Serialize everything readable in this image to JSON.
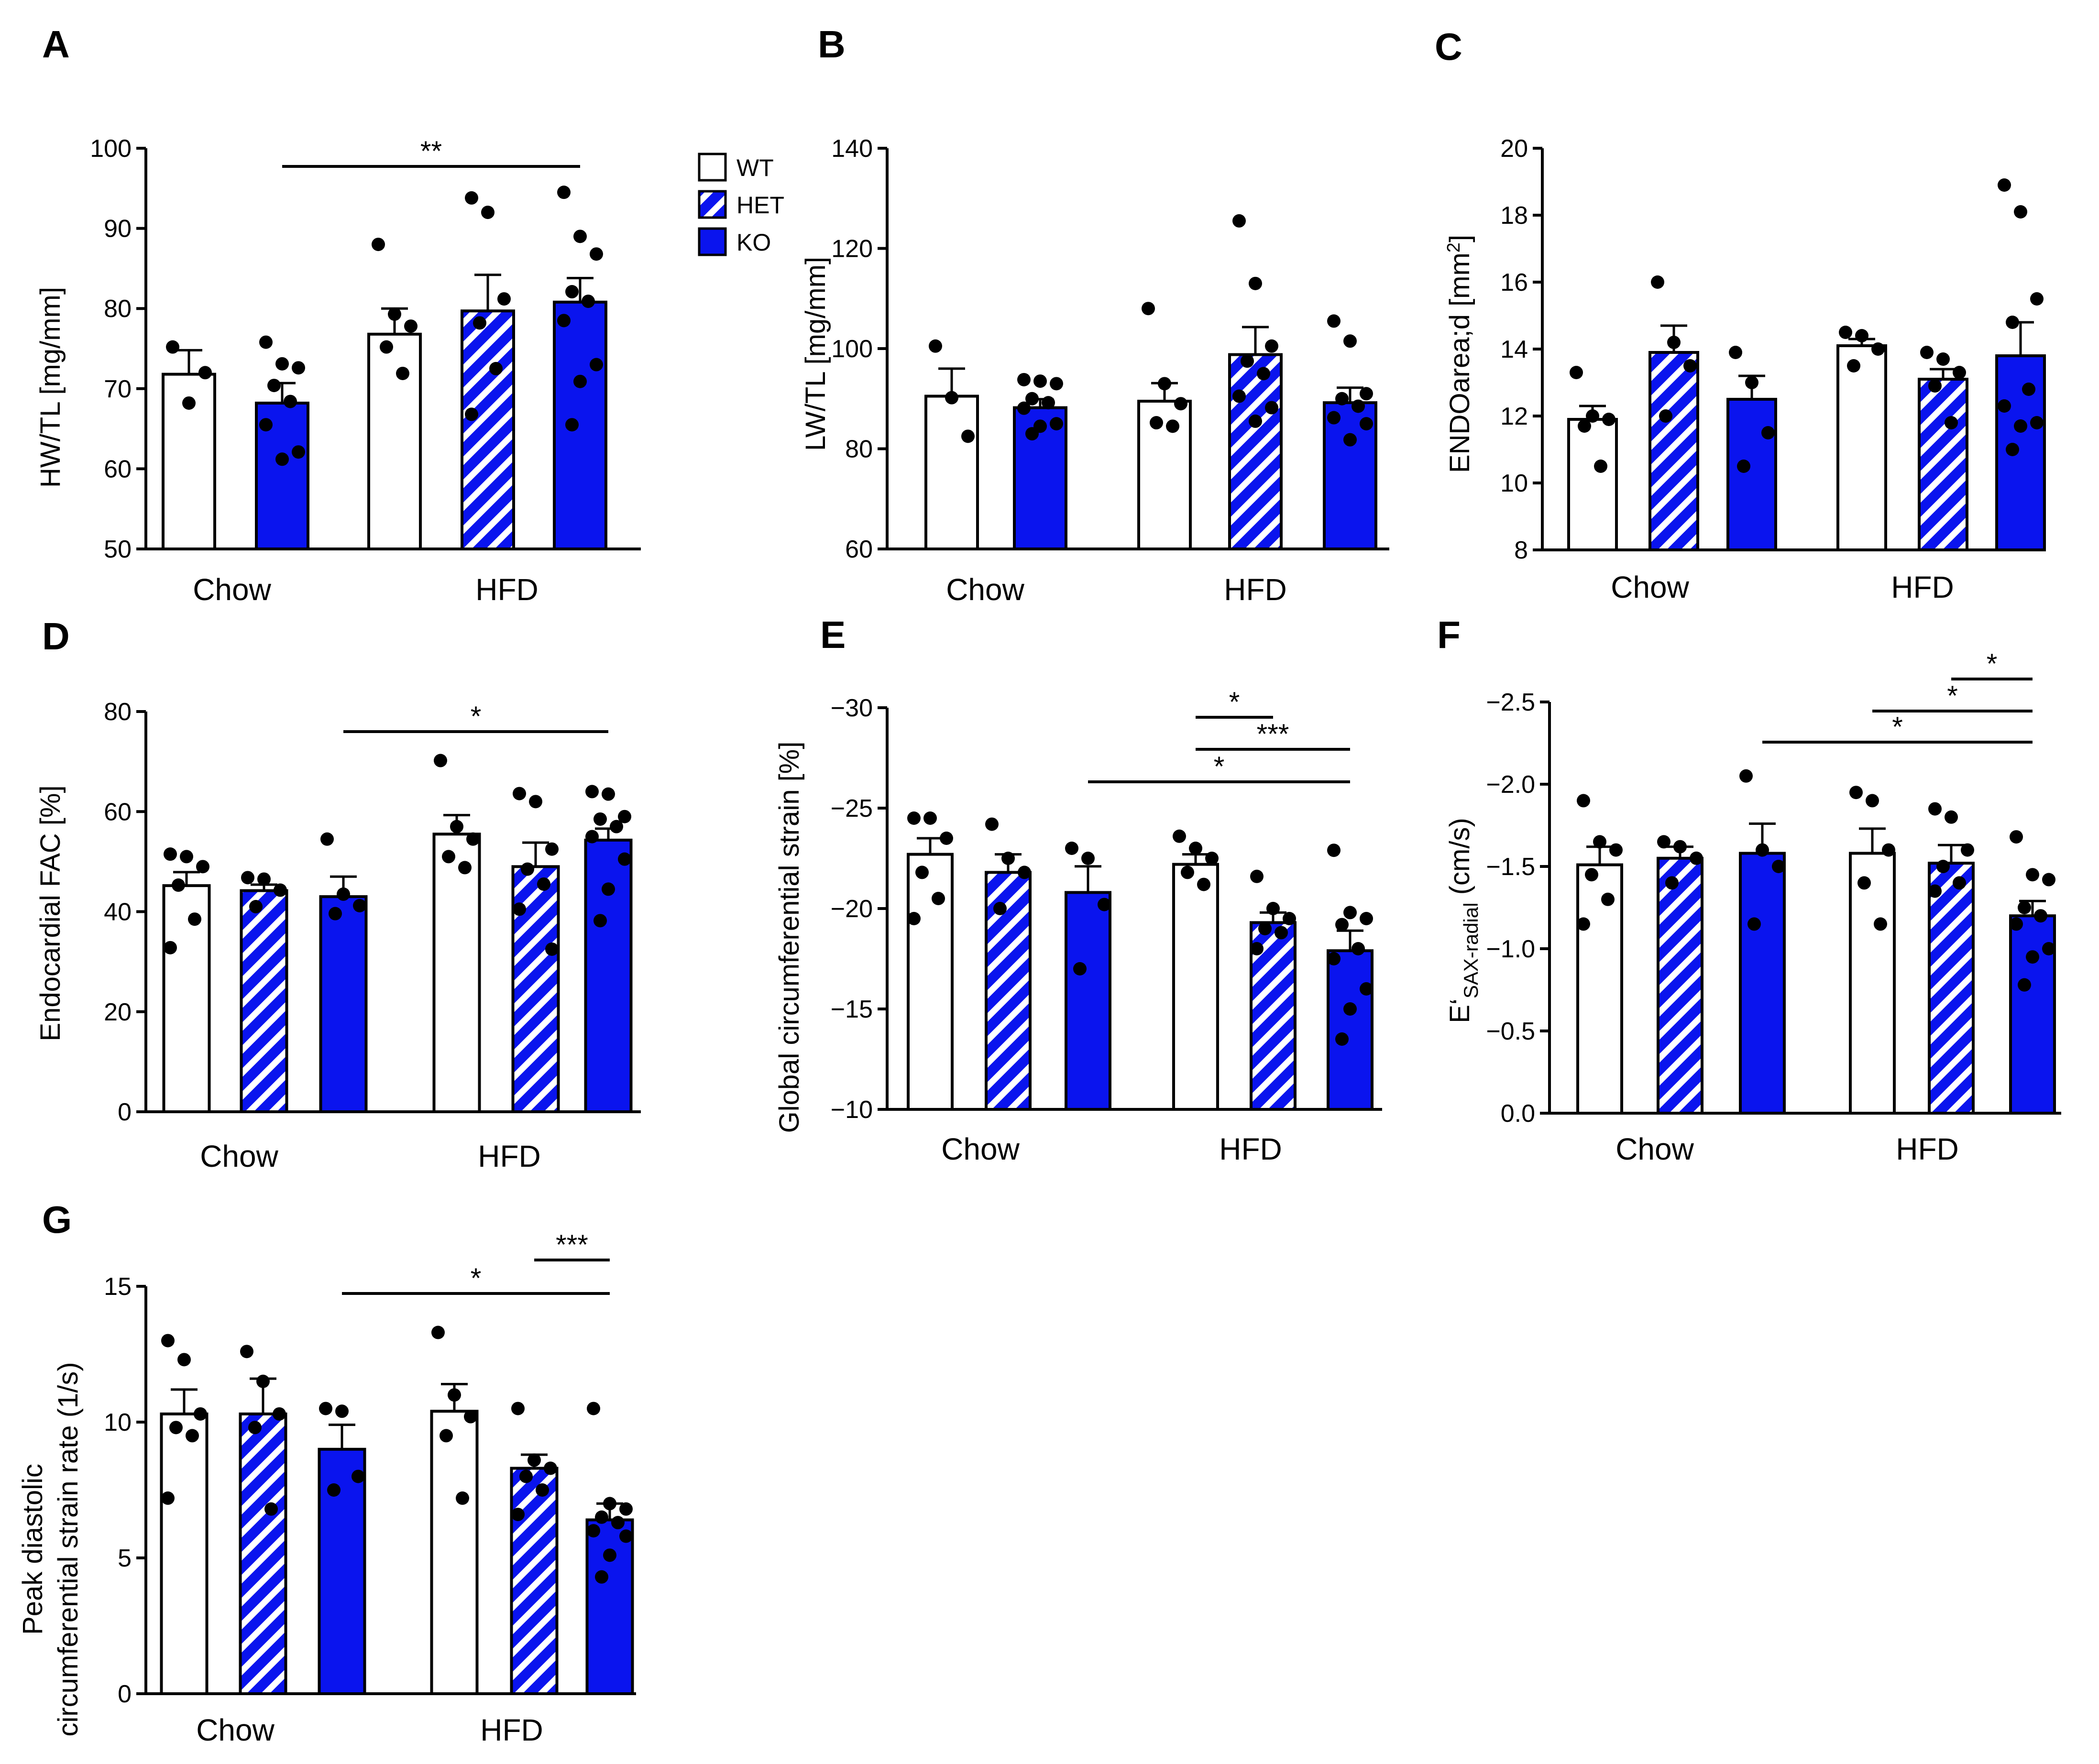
{
  "legend": {
    "items": [
      {
        "label": "WT",
        "pattern": "white"
      },
      {
        "label": "HET",
        "pattern": "hatch"
      },
      {
        "label": "KO",
        "pattern": "blue"
      }
    ]
  },
  "colors": {
    "blue": "#0a14ee",
    "black": "#000000",
    "white": "#ffffff"
  },
  "chart_data": [
    {
      "panel": "A",
      "type": "bar",
      "ylabel": "HW/TL [mg/mm]",
      "ylim": [
        50,
        100
      ],
      "yticks": [
        "50",
        "60",
        "70",
        "80",
        "90",
        "100"
      ],
      "groups": [
        "Chow",
        "HFD"
      ],
      "bars": [
        {
          "group": "Chow",
          "genotype": "WT",
          "mean": 71.8,
          "sem": 3.0,
          "points": [
            75.2,
            68.2,
            72.0
          ]
        },
        {
          "group": "Chow",
          "genotype": "KO",
          "mean": 68.2,
          "sem": 2.5,
          "points": [
            75.8,
            73.1,
            72.6,
            70.4,
            68.4,
            65.5,
            62.1,
            61.2
          ]
        },
        {
          "group": "HFD",
          "genotype": "WT",
          "mean": 76.8,
          "sem": 3.2,
          "points": [
            88.0,
            79.3,
            77.8,
            75.2,
            71.9
          ]
        },
        {
          "group": "HFD",
          "genotype": "HET",
          "mean": 79.7,
          "sem": 4.5,
          "points": [
            93.8,
            92.0,
            81.2,
            78.2,
            72.5,
            66.8
          ]
        },
        {
          "group": "HFD",
          "genotype": "KO",
          "mean": 80.8,
          "sem": 3.0,
          "points": [
            94.5,
            89.0,
            86.8,
            82.1,
            80.9,
            78.5,
            73.0,
            70.9,
            65.5
          ]
        }
      ],
      "significance": [
        {
          "label": "**",
          "from": 1,
          "to": 4
        }
      ]
    },
    {
      "panel": "B",
      "type": "bar",
      "ylabel": "LW/TL [mg/mm]",
      "ylim": [
        60,
        140
      ],
      "yticks": [
        "60",
        "80",
        "100",
        "120",
        "140"
      ],
      "groups": [
        "Chow",
        "HFD"
      ],
      "bars": [
        {
          "group": "Chow",
          "genotype": "WT",
          "mean": 90.5,
          "sem": 5.5,
          "points": [
            100.5,
            90.2,
            82.5
          ]
        },
        {
          "group": "Chow",
          "genotype": "KO",
          "mean": 88.2,
          "sem": 1.7,
          "points": [
            93.8,
            93.5,
            93.0,
            90.0,
            89.2,
            88.1,
            85.0,
            84.5,
            83.0
          ]
        },
        {
          "group": "HFD",
          "genotype": "WT",
          "mean": 89.5,
          "sem": 3.6,
          "points": [
            108.0,
            93.0,
            89.0,
            85.2,
            84.5
          ]
        },
        {
          "group": "HFD",
          "genotype": "HET",
          "mean": 98.8,
          "sem": 5.5,
          "points": [
            125.5,
            113.0,
            100.5,
            97.5,
            95.0,
            90.5,
            88.2,
            85.5
          ]
        },
        {
          "group": "HFD",
          "genotype": "KO",
          "mean": 89.2,
          "sem": 3.0,
          "points": [
            105.5,
            101.5,
            91.0,
            90.0,
            88.5,
            86.2,
            85.0,
            81.8
          ]
        }
      ],
      "significance": []
    },
    {
      "panel": "C",
      "type": "bar",
      "ylabel": "ENDOarea;d [mm2]",
      "ylim": [
        8,
        20
      ],
      "yticks": [
        "8",
        "10",
        "12",
        "14",
        "16",
        "18",
        "20"
      ],
      "groups": [
        "Chow",
        "HFD"
      ],
      "bars": [
        {
          "group": "Chow",
          "genotype": "WT",
          "mean": 11.9,
          "sem": 0.4,
          "points": [
            13.3,
            12.0,
            11.9,
            11.7,
            10.5
          ]
        },
        {
          "group": "Chow",
          "genotype": "HET",
          "mean": 13.9,
          "sem": 0.8,
          "points": [
            16.0,
            14.2,
            13.5,
            12.0
          ]
        },
        {
          "group": "Chow",
          "genotype": "KO",
          "mean": 12.5,
          "sem": 0.7,
          "points": [
            13.9,
            13.0,
            11.5,
            10.5
          ]
        },
        {
          "group": "HFD",
          "genotype": "WT",
          "mean": 14.1,
          "sem": 0.2,
          "points": [
            14.5,
            14.4,
            14.0,
            13.5
          ]
        },
        {
          "group": "HFD",
          "genotype": "HET",
          "mean": 13.1,
          "sem": 0.3,
          "points": [
            13.9,
            13.7,
            13.3,
            12.9,
            11.8
          ]
        },
        {
          "group": "HFD",
          "genotype": "KO",
          "mean": 13.8,
          "sem": 1.0,
          "points": [
            18.9,
            18.1,
            15.5,
            14.8,
            12.8,
            12.3,
            11.8,
            11.7,
            11.0
          ]
        }
      ],
      "significance": []
    },
    {
      "panel": "D",
      "type": "bar",
      "ylabel": "Endocardial FAC [%]",
      "ylim": [
        0,
        80
      ],
      "yticks": [
        "0",
        "20",
        "40",
        "60",
        "80"
      ],
      "groups": [
        "Chow",
        "HFD"
      ],
      "bars": [
        {
          "group": "Chow",
          "genotype": "WT",
          "mean": 45.2,
          "sem": 2.7,
          "points": [
            51.5,
            51.0,
            49.0,
            45.3,
            38.5,
            32.8
          ]
        },
        {
          "group": "Chow",
          "genotype": "HET",
          "mean": 44.2,
          "sem": 1.2,
          "points": [
            46.8,
            46.5,
            44.3,
            41.0
          ]
        },
        {
          "group": "Chow",
          "genotype": "KO",
          "mean": 43.0,
          "sem": 4.0,
          "points": [
            54.5,
            43.5,
            41.2,
            39.6
          ]
        },
        {
          "group": "HFD",
          "genotype": "WT",
          "mean": 55.5,
          "sem": 3.8,
          "points": [
            70.2,
            57.0,
            54.5,
            51.0,
            48.8
          ]
        },
        {
          "group": "HFD",
          "genotype": "HET",
          "mean": 49.0,
          "sem": 4.8,
          "points": [
            63.6,
            62.0,
            52.5,
            48.5,
            45.5,
            40.5,
            32.5
          ]
        },
        {
          "group": "HFD",
          "genotype": "KO",
          "mean": 54.3,
          "sem": 2.3,
          "points": [
            64.0,
            63.5,
            59.0,
            58.5,
            57.0,
            55.0,
            50.5,
            44.5,
            38.2
          ]
        }
      ],
      "significance": [
        {
          "label": "*",
          "from": 2,
          "to": 5
        }
      ]
    },
    {
      "panel": "E",
      "type": "bar",
      "ylabel": "Global circumferential strain [%]",
      "ylim": [
        -10,
        -30
      ],
      "yticks": [
        "−10",
        "−15",
        "−20",
        "−25",
        "−30"
      ],
      "groups": [
        "Chow",
        "HFD"
      ],
      "bars": [
        {
          "group": "Chow",
          "genotype": "WT",
          "mean": -22.7,
          "sem": 0.8,
          "points": [
            -24.5,
            -24.5,
            -23.5,
            -21.8,
            -20.5,
            -19.5
          ]
        },
        {
          "group": "Chow",
          "genotype": "HET",
          "mean": -21.8,
          "sem": 0.9,
          "points": [
            -24.2,
            -22.5,
            -21.8,
            -20.0
          ]
        },
        {
          "group": "Chow",
          "genotype": "KO",
          "mean": -20.8,
          "sem": 1.3,
          "points": [
            -23.0,
            -22.5,
            -20.2,
            -17.0
          ]
        },
        {
          "group": "HFD",
          "genotype": "WT",
          "mean": -22.2,
          "sem": 0.5,
          "points": [
            -23.6,
            -23.0,
            -22.5,
            -21.8,
            -21.2
          ]
        },
        {
          "group": "HFD",
          "genotype": "HET",
          "mean": -19.3,
          "sem": 0.5,
          "points": [
            -21.6,
            -20.0,
            -19.5,
            -19.0,
            -18.8,
            -18.0
          ]
        },
        {
          "group": "HFD",
          "genotype": "KO",
          "mean": -17.9,
          "sem": 1.0,
          "points": [
            -22.9,
            -19.8,
            -19.5,
            -19.2,
            -18.0,
            -17.5,
            -16.0,
            -15.0,
            -13.5
          ]
        }
      ],
      "significance": [
        {
          "label": "*",
          "from": 3,
          "to": 4
        },
        {
          "label": "***",
          "from": 3,
          "to": 5
        },
        {
          "label": "*",
          "from": 2,
          "to": 5
        }
      ]
    },
    {
      "panel": "F",
      "type": "bar",
      "ylabel": "E'SAX-radial (cm/s)",
      "ylabel_main": "E‘",
      "ylabel_sub": "SAX-radial",
      "ylabel_tail": " (cm/s)",
      "ylim": [
        0,
        -2.5
      ],
      "yticks": [
        "0.0",
        "−0.5",
        "−1.0",
        "−1.5",
        "−2.0",
        "−2.5"
      ],
      "groups": [
        "Chow",
        "HFD"
      ],
      "bars": [
        {
          "group": "Chow",
          "genotype": "WT",
          "mean": -1.51,
          "sem": 0.11,
          "points": [
            -1.9,
            -1.65,
            -1.6,
            -1.45,
            -1.3,
            -1.15
          ]
        },
        {
          "group": "Chow",
          "genotype": "HET",
          "mean": -1.55,
          "sem": 0.07,
          "points": [
            -1.65,
            -1.62,
            -1.55,
            -1.4
          ]
        },
        {
          "group": "Chow",
          "genotype": "KO",
          "mean": -1.58,
          "sem": 0.18,
          "points": [
            -2.05,
            -1.6,
            -1.5,
            -1.15
          ]
        },
        {
          "group": "HFD",
          "genotype": "WT",
          "mean": -1.58,
          "sem": 0.15,
          "points": [
            -1.95,
            -1.9,
            -1.6,
            -1.4,
            -1.15
          ]
        },
        {
          "group": "HFD",
          "genotype": "HET",
          "mean": -1.52,
          "sem": 0.11,
          "points": [
            -1.85,
            -1.8,
            -1.6,
            -1.5,
            -1.4,
            -1.35
          ]
        },
        {
          "group": "HFD",
          "genotype": "KO",
          "mean": -1.2,
          "sem": 0.09,
          "points": [
            -1.68,
            -1.45,
            -1.42,
            -1.25,
            -1.2,
            -1.15,
            -1.0,
            -0.95,
            -0.78
          ]
        }
      ],
      "significance": [
        {
          "label": "*",
          "from": 4,
          "to": 5
        },
        {
          "label": "*",
          "from": 3,
          "to": 5
        },
        {
          "label": "*",
          "from": 2,
          "to": 5
        }
      ]
    },
    {
      "panel": "G",
      "type": "bar",
      "ylabel_line1": "Peak diastolic",
      "ylabel_line2": "circumferential strain rate (1/s)",
      "ylim": [
        0,
        15
      ],
      "yticks": [
        "0",
        "5",
        "10",
        "15"
      ],
      "groups": [
        "Chow",
        "HFD"
      ],
      "bars": [
        {
          "group": "Chow",
          "genotype": "WT",
          "mean": 10.3,
          "sem": 0.9,
          "points": [
            13.0,
            12.3,
            10.3,
            9.8,
            9.5,
            7.2
          ]
        },
        {
          "group": "Chow",
          "genotype": "HET",
          "mean": 10.3,
          "sem": 1.3,
          "points": [
            12.6,
            11.5,
            10.3,
            9.8,
            6.8
          ]
        },
        {
          "group": "Chow",
          "genotype": "KO",
          "mean": 9.0,
          "sem": 0.9,
          "points": [
            10.5,
            10.4,
            8.0,
            7.5
          ]
        },
        {
          "group": "HFD",
          "genotype": "WT",
          "mean": 10.4,
          "sem": 1.0,
          "points": [
            13.3,
            11.0,
            10.2,
            9.5,
            7.2
          ]
        },
        {
          "group": "HFD",
          "genotype": "HET",
          "mean": 8.3,
          "sem": 0.5,
          "points": [
            10.5,
            8.6,
            8.3,
            8.0,
            7.5,
            6.6
          ]
        },
        {
          "group": "HFD",
          "genotype": "KO",
          "mean": 6.4,
          "sem": 0.6,
          "points": [
            10.5,
            7.0,
            6.8,
            6.5,
            6.3,
            6.0,
            5.8,
            5.1,
            4.3
          ]
        }
      ],
      "significance": [
        {
          "label": "***",
          "from": 4,
          "to": 5
        },
        {
          "label": "*",
          "from": 2,
          "to": 5
        }
      ]
    }
  ]
}
